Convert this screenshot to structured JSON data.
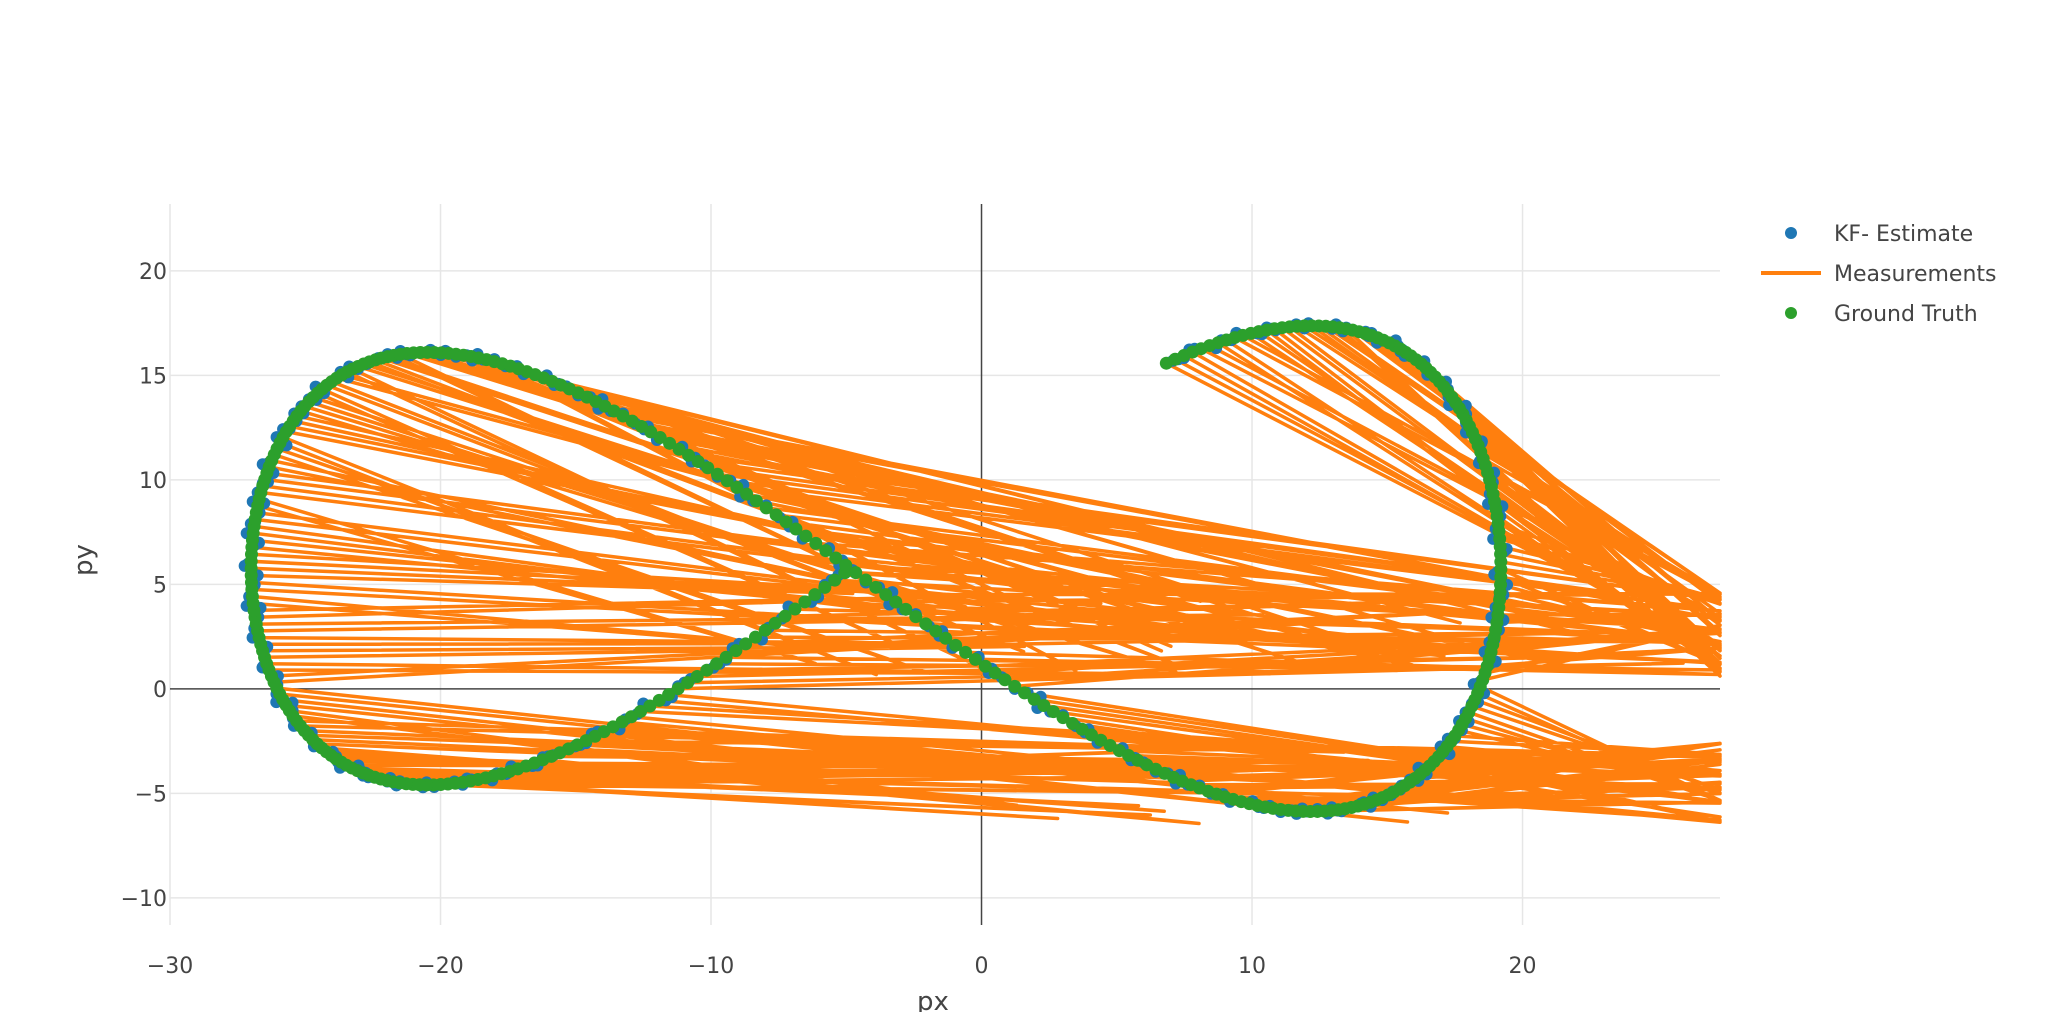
{
  "chart_data": {
    "type": "scatter",
    "title": "",
    "xlabel": "px",
    "ylabel": "py",
    "xlim": [
      -30,
      27.3
    ],
    "ylim": [
      -11.3,
      23.2
    ],
    "xticks": [
      -30,
      -20,
      -10,
      0,
      10,
      20
    ],
    "yticks": [
      -10,
      -5,
      0,
      5,
      10,
      15,
      20
    ],
    "xtick_labels": [
      "−30",
      "−20",
      "−10",
      "0",
      "10",
      "20"
    ],
    "ytick_labels": [
      "−10",
      "−5",
      "0",
      "5",
      "10",
      "15",
      "20"
    ],
    "grid": true,
    "zero_lines": true,
    "legend": {
      "placement": "top-right"
    },
    "ground_truth_path": {
      "x_center": -3.9,
      "x_amplitude": 23.1,
      "y_center": 5.75,
      "y_amplitude": 15.25,
      "y_phase_shift": 0.25,
      "t_start": 0.05,
      "t_end": 5.8,
      "points": 360
    },
    "measurements_noise_note": "",
    "series": [
      {
        "name": "KF- Estimate",
        "mode": "markers",
        "color": "#1f77b4"
      },
      {
        "name": "Measurements",
        "mode": "lines",
        "color": "#ff7f0e"
      },
      {
        "name": "Ground Truth",
        "mode": "markers",
        "color": "#2ca02c"
      }
    ]
  }
}
